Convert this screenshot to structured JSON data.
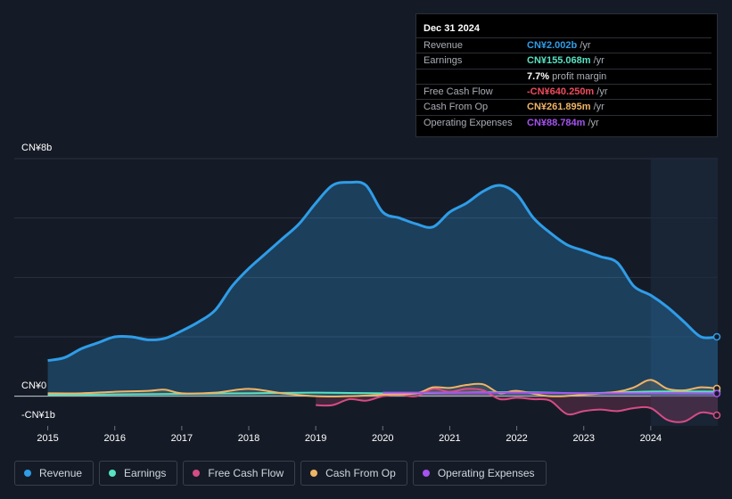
{
  "tooltip": {
    "date": "Dec 31 2024",
    "rows": [
      {
        "label": "Revenue",
        "value": "CN¥2.002b",
        "unit": "/yr",
        "color": "#2f9de8"
      },
      {
        "label": "Earnings",
        "value": "CN¥155.068m",
        "unit": "/yr",
        "color": "#58e2c2"
      },
      {
        "label": "",
        "value": "7.7%",
        "unit": "profit margin",
        "color": "#ffffff"
      },
      {
        "label": "Free Cash Flow",
        "value": "-CN¥640.250m",
        "unit": "/yr",
        "color": "#ef4b5c"
      },
      {
        "label": "Cash From Op",
        "value": "CN¥261.895m",
        "unit": "/yr",
        "color": "#f0b466"
      },
      {
        "label": "Operating Expenses",
        "value": "CN¥88.784m",
        "unit": "/yr",
        "color": "#a653f0"
      }
    ]
  },
  "chart_data": {
    "type": "area",
    "title": "",
    "xlabel": "",
    "ylabel": "",
    "y_top_label": "CN¥8b",
    "y_zero_label": "CN¥0",
    "y_bottom_label": "-CN¥1b",
    "ylim": [
      -1,
      8
    ],
    "xlim": [
      2014.5,
      2025.0
    ],
    "x_ticks": [
      "2015",
      "2016",
      "2017",
      "2018",
      "2019",
      "2020",
      "2021",
      "2022",
      "2023",
      "2024"
    ],
    "highlight_from": 2024.0,
    "series": [
      {
        "name": "Revenue",
        "color": "#2f9de8",
        "x": [
          2015.0,
          2015.25,
          2015.5,
          2015.75,
          2016.0,
          2016.25,
          2016.5,
          2016.75,
          2017.0,
          2017.25,
          2017.5,
          2017.75,
          2018.0,
          2018.25,
          2018.5,
          2018.75,
          2019.0,
          2019.25,
          2019.5,
          2019.75,
          2020.0,
          2020.25,
          2020.5,
          2020.75,
          2021.0,
          2021.25,
          2021.5,
          2021.75,
          2022.0,
          2022.25,
          2022.5,
          2022.75,
          2023.0,
          2023.25,
          2023.5,
          2023.75,
          2024.0,
          2024.25,
          2024.5,
          2024.75,
          2025.0
        ],
        "values": [
          1.2,
          1.3,
          1.6,
          1.8,
          2.0,
          2.0,
          1.9,
          1.95,
          2.2,
          2.5,
          2.9,
          3.7,
          4.3,
          4.8,
          5.3,
          5.8,
          6.5,
          7.1,
          7.2,
          7.1,
          6.2,
          6.0,
          5.8,
          5.7,
          6.2,
          6.5,
          6.9,
          7.1,
          6.8,
          6.0,
          5.5,
          5.1,
          4.9,
          4.7,
          4.5,
          3.7,
          3.4,
          3.0,
          2.5,
          2.0,
          2.0
        ]
      },
      {
        "name": "Earnings",
        "color": "#58e2c2",
        "x": [
          2015.0,
          2016.0,
          2017.0,
          2018.0,
          2019.0,
          2020.0,
          2021.0,
          2022.0,
          2023.0,
          2024.0,
          2025.0
        ],
        "values": [
          0.05,
          0.06,
          0.08,
          0.1,
          0.12,
          0.1,
          0.12,
          0.14,
          0.1,
          0.16,
          0.155
        ]
      },
      {
        "name": "Free Cash Flow",
        "color": "#d64c84",
        "x": [
          2019.0,
          2019.25,
          2019.5,
          2019.75,
          2020.0,
          2020.25,
          2020.5,
          2020.75,
          2021.0,
          2021.25,
          2021.5,
          2021.75,
          2022.0,
          2022.25,
          2022.5,
          2022.75,
          2023.0,
          2023.25,
          2023.5,
          2023.75,
          2024.0,
          2024.25,
          2024.5,
          2024.75,
          2025.0
        ],
        "values": [
          -0.3,
          -0.3,
          -0.1,
          -0.15,
          0.0,
          0.05,
          0.0,
          0.25,
          0.15,
          0.25,
          0.2,
          -0.1,
          -0.05,
          -0.1,
          -0.15,
          -0.6,
          -0.5,
          -0.45,
          -0.5,
          -0.4,
          -0.4,
          -0.8,
          -0.85,
          -0.55,
          -0.64
        ]
      },
      {
        "name": "Cash From Op",
        "color": "#f0b466",
        "x": [
          2015.0,
          2015.5,
          2016.0,
          2016.5,
          2016.75,
          2017.0,
          2017.5,
          2018.0,
          2018.5,
          2019.0,
          2019.5,
          2020.0,
          2020.5,
          2020.75,
          2021.0,
          2021.25,
          2021.5,
          2021.75,
          2022.0,
          2022.5,
          2023.0,
          2023.5,
          2023.75,
          2024.0,
          2024.25,
          2024.5,
          2024.75,
          2025.0
        ],
        "values": [
          0.1,
          0.1,
          0.15,
          0.18,
          0.22,
          0.1,
          0.12,
          0.25,
          0.1,
          0.0,
          0.0,
          0.05,
          0.1,
          0.3,
          0.28,
          0.38,
          0.4,
          0.1,
          0.18,
          0.0,
          0.05,
          0.15,
          0.3,
          0.55,
          0.25,
          0.2,
          0.3,
          0.26
        ]
      },
      {
        "name": "Operating Expenses",
        "color": "#a653f0",
        "x": [
          2020.0,
          2021.0,
          2022.0,
          2023.0,
          2024.0,
          2025.0
        ],
        "values": [
          0.12,
          0.12,
          0.12,
          0.1,
          0.1,
          0.09
        ]
      }
    ]
  },
  "legend": [
    "Revenue",
    "Earnings",
    "Free Cash Flow",
    "Cash From Op",
    "Operating Expenses"
  ]
}
